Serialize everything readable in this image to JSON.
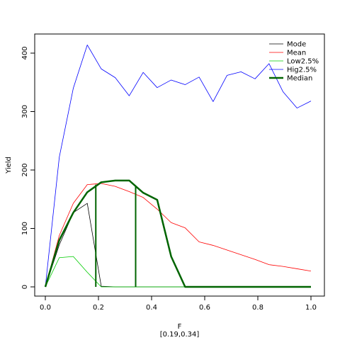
{
  "chart_data": {
    "type": "line",
    "title": "",
    "xlabel": "F",
    "xlabel_sub": "[0.19,0.34]",
    "ylabel": "Yield",
    "xlim": [
      0,
      1
    ],
    "ylim": [
      0,
      415
    ],
    "xticks": [
      "0.0",
      "0.2",
      "0.4",
      "0.6",
      "0.8",
      "1.0"
    ],
    "yticks": [
      "0",
      "100",
      "200",
      "300",
      "400"
    ],
    "grid": false,
    "legend_position": "top-right",
    "x": [
      0,
      0.0526,
      0.1053,
      0.1579,
      0.2105,
      0.2632,
      0.3158,
      0.3684,
      0.4211,
      0.4737,
      0.5263,
      0.5789,
      0.6316,
      0.6842,
      0.7368,
      0.7895,
      0.8421,
      0.8947,
      0.9474,
      1.0
    ],
    "series": [
      {
        "name": "Mode",
        "color": "#000000",
        "stroke_width": 0.8,
        "values": [
          0,
          72,
          127,
          143,
          1,
          0,
          0,
          0,
          0,
          0,
          0,
          0,
          0,
          0,
          0,
          0,
          0,
          0,
          0,
          0
        ]
      },
      {
        "name": "Mean",
        "color": "#ff0000",
        "stroke_width": 0.8,
        "values": [
          0,
          88,
          143,
          175,
          177,
          172,
          163,
          153,
          133,
          110,
          101,
          77,
          71,
          63,
          55,
          47,
          38,
          35,
          31,
          27
        ]
      },
      {
        "name": "Low2.5%",
        "color": "#00cc00",
        "stroke_width": 0.8,
        "values": [
          0,
          50,
          52,
          25,
          0,
          0,
          0,
          0,
          0,
          0,
          0,
          0,
          0,
          0,
          0,
          0,
          0,
          0,
          0,
          0
        ]
      },
      {
        "name": "Hig2.5%",
        "color": "#0000ff",
        "stroke_width": 0.8,
        "values": [
          0,
          222,
          340,
          414,
          373,
          358,
          327,
          367,
          341,
          354,
          346,
          359,
          317,
          362,
          368,
          356,
          382,
          334,
          306,
          318
        ]
      },
      {
        "name": "Median",
        "color": "#006400",
        "stroke_width": 2.5,
        "values": [
          0,
          80,
          127,
          162,
          179,
          182,
          182,
          161,
          149,
          52,
          0,
          0,
          0,
          0,
          0,
          0,
          0,
          0,
          0,
          0
        ]
      }
    ],
    "vertical_lines": {
      "color": "#006400",
      "stroke_width": 2,
      "x": [
        0.19,
        0.34
      ],
      "y_top": [
        175,
        172
      ]
    }
  }
}
